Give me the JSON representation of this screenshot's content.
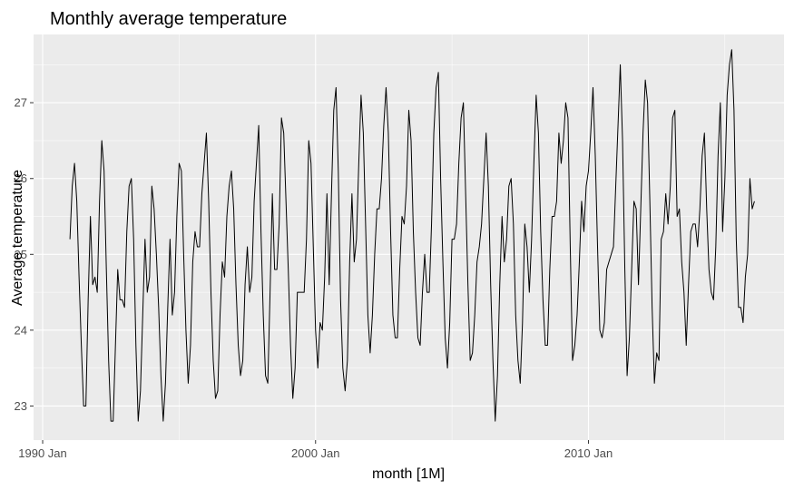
{
  "chart_data": {
    "type": "line",
    "title": "Monthly average temperature",
    "xlabel": "month [1M]",
    "ylabel": "Average temperature",
    "x_tick_labels": [
      "1990 Jan",
      "2000 Jan",
      "2010 Jan"
    ],
    "x_ticks": [
      "1990-01",
      "2000-01",
      "2010-01"
    ],
    "y_tick_labels": [
      "23",
      "24",
      "25",
      "26",
      "27"
    ],
    "y_ticks": [
      23,
      24,
      25,
      26,
      27
    ],
    "xlim": [
      "1989-09",
      "2017-03"
    ],
    "ylim": [
      22.55,
      27.9
    ],
    "grid": true,
    "legend": "none",
    "colors": {
      "panel": "#ebebeb",
      "grid_major": "#ffffff",
      "line": "#000000",
      "tick_text": "#4d4d4d"
    },
    "series": [
      {
        "x_start": "1991-01",
        "frequency": "monthly",
        "values": [
          25.2,
          25.9,
          26.2,
          25.7,
          24.7,
          23.8,
          23.0,
          23.0,
          24.4,
          25.5,
          24.6,
          24.7,
          24.5,
          25.7,
          26.5,
          26.1,
          24.8,
          23.6,
          22.8,
          22.8,
          23.8,
          24.8,
          24.4,
          24.4,
          24.3,
          25.3,
          25.9,
          26.0,
          25.2,
          23.8,
          22.8,
          23.2,
          24.2,
          25.2,
          24.5,
          24.7,
          25.9,
          25.6,
          25.0,
          24.3,
          23.4,
          22.8,
          23.3,
          24.3,
          25.2,
          24.2,
          24.5,
          25.5,
          26.2,
          26.1,
          25.0,
          24.0,
          23.3,
          23.8,
          24.9,
          25.3,
          25.1,
          25.1,
          25.8,
          26.2,
          26.6,
          25.7,
          24.5,
          23.6,
          23.1,
          23.2,
          24.2,
          24.9,
          24.7,
          25.5,
          25.9,
          26.1,
          25.6,
          24.6,
          23.8,
          23.4,
          23.6,
          24.6,
          25.1,
          24.5,
          24.7,
          25.7,
          26.2,
          26.7,
          25.3,
          24.2,
          23.4,
          23.3,
          24.5,
          25.8,
          24.8,
          24.8,
          25.4,
          26.8,
          26.6,
          25.7,
          24.8,
          23.8,
          23.1,
          23.5,
          24.5,
          24.5,
          24.5,
          24.5,
          25.2,
          26.5,
          26.2,
          25.1,
          24.0,
          23.5,
          24.1,
          24.0,
          24.7,
          25.8,
          24.6,
          25.8,
          26.9,
          27.2,
          26.1,
          24.4,
          23.5,
          23.2,
          23.6,
          24.9,
          25.8,
          24.9,
          25.2,
          26.2,
          27.1,
          26.6,
          25.4,
          24.2,
          23.7,
          24.2,
          25.0,
          25.6,
          25.6,
          26.0,
          26.7,
          27.2,
          26.6,
          25.3,
          24.2,
          23.9,
          23.9,
          24.8,
          25.5,
          25.4,
          25.9,
          26.9,
          26.5,
          25.3,
          24.5,
          23.9,
          23.8,
          24.5,
          25.0,
          24.5,
          24.5,
          25.4,
          26.6,
          27.2,
          27.4,
          26.0,
          24.9,
          23.9,
          23.5,
          24.1,
          25.2,
          25.2,
          25.4,
          26.2,
          26.8,
          27.0,
          25.8,
          24.6,
          23.6,
          23.7,
          24.2,
          24.9,
          25.1,
          25.4,
          26.0,
          26.6,
          25.9,
          24.6,
          23.6,
          22.8,
          23.4,
          24.6,
          25.5,
          24.9,
          25.2,
          25.9,
          26.0,
          25.4,
          24.2,
          23.6,
          23.3,
          24.1,
          25.4,
          25.1,
          24.5,
          25.2,
          26.2,
          27.1,
          26.6,
          25.3,
          24.4,
          23.8,
          23.8,
          24.8,
          25.5,
          25.5,
          25.7,
          26.6,
          26.2,
          26.5,
          27.0,
          26.8,
          25.1,
          23.6,
          23.8,
          24.2,
          24.9,
          25.7,
          25.3,
          25.9,
          26.1,
          26.6,
          27.2,
          26.3,
          25.1,
          24.0,
          23.9,
          24.1,
          24.8,
          24.9,
          25.0,
          25.1,
          25.9,
          26.7,
          27.5,
          26.5,
          24.8,
          23.4,
          23.9,
          24.8,
          25.7,
          25.6,
          24.6,
          25.6,
          26.6,
          27.3,
          27.0,
          25.7,
          24.3,
          23.3,
          23.7,
          23.6,
          25.2,
          25.3,
          25.8,
          25.4,
          25.9,
          26.8,
          26.9,
          25.5,
          25.6,
          24.9,
          24.5,
          23.8,
          24.6,
          25.3,
          25.4,
          25.4,
          25.1,
          25.6,
          26.3,
          26.6,
          25.6,
          24.8,
          24.5,
          24.4,
          25.1,
          26.3,
          27.0,
          25.3,
          26.0,
          27.1,
          27.5,
          27.7,
          26.9,
          25.2,
          24.3,
          24.3,
          24.1,
          24.7,
          25.0,
          26.0,
          25.6,
          25.7
        ]
      }
    ]
  }
}
